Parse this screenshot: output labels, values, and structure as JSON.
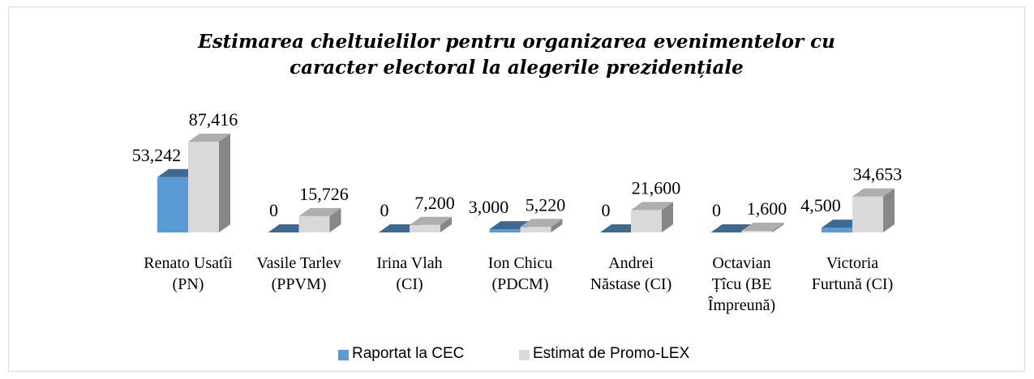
{
  "chart_data": {
    "type": "bar3d",
    "title": "Estimarea cheltuielilor pentru organizarea evenimentelor cu caracter electoral la alegerile prezidențiale",
    "categories": [
      "Renato Usatîi (PN)",
      "Vasile Tarlev (PPVM)",
      "Irina Vlah (CI)",
      "Ion Chicu (PDCM)",
      "Andrei Năstase (CI)",
      "Octavian Țîcu (BE Împreună)",
      "Victoria Furtună (CI)"
    ],
    "series": [
      {
        "name": "Raportat la CEC",
        "color": "#5b9bd5",
        "values": [
          53242,
          0,
          0,
          3000,
          0,
          0,
          4500
        ],
        "value_labels": [
          "53,242",
          "0",
          "0",
          "3,000",
          "0",
          "0",
          "4,500"
        ]
      },
      {
        "name": "Estimat de Promo-LEX",
        "color": "#d9d9d9",
        "values": [
          87416,
          15726,
          7200,
          5220,
          21600,
          1600,
          34653
        ],
        "value_labels": [
          "87,416",
          "15,726",
          "7,200",
          "5,220",
          "21,600",
          "1,600",
          "34,653"
        ]
      }
    ],
    "legend": "bottom"
  }
}
